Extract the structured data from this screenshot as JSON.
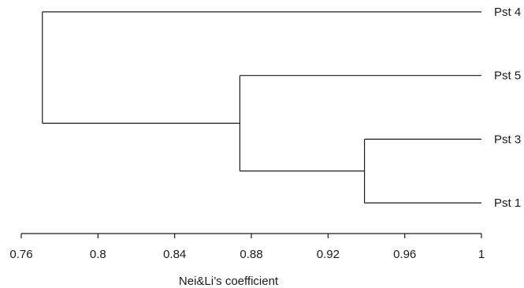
{
  "chart_data": {
    "type": "dendrogram",
    "xlabel": "Nei&Li’s coefficient",
    "xlim": [
      0.76,
      1.0
    ],
    "ticks": [
      {
        "value": 0.76,
        "label": "0.76"
      },
      {
        "value": 0.8,
        "label": "0.8"
      },
      {
        "value": 0.84,
        "label": "0.84"
      },
      {
        "value": 0.88,
        "label": "0.88"
      },
      {
        "value": 0.92,
        "label": "0.92"
      },
      {
        "value": 0.96,
        "label": "0.96"
      },
      {
        "value": 1.0,
        "label": "1"
      }
    ],
    "leaves": [
      "Pst 4",
      "Pst 5",
      "Pst 3",
      "Pst 1"
    ],
    "merges": [
      {
        "id": "n1",
        "left": "Pst 3",
        "right": "Pst 1",
        "coefficient": 0.939
      },
      {
        "id": "n2",
        "left": "Pst 5",
        "right": "n1",
        "coefficient": 0.874
      },
      {
        "id": "n3",
        "left": "Pst 4",
        "right": "n2",
        "coefficient": 0.771
      }
    ],
    "line_color": "#1a1a1a"
  }
}
